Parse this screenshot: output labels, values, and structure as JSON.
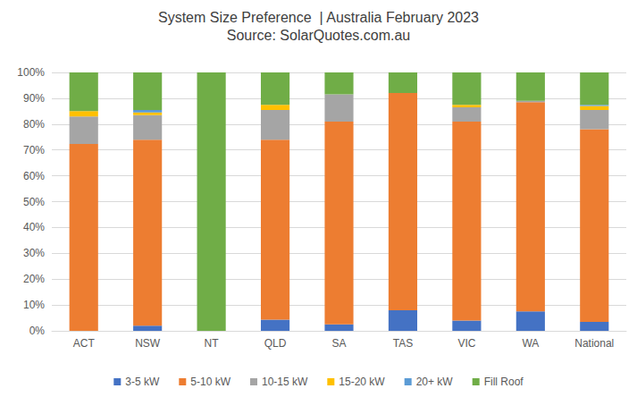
{
  "chart_data": {
    "type": "bar",
    "title": "System Size Preference  | Australia February 2023",
    "subtitle": "Source: SolarQuotes.com.au",
    "categories": [
      "ACT",
      "NSW",
      "NT",
      "QLD",
      "SA",
      "TAS",
      "VIC",
      "WA",
      "National"
    ],
    "stacked": true,
    "grid": true,
    "legend": "bottom",
    "ylim": [
      0,
      100
    ],
    "yticks": [
      {
        "value": 0,
        "label": "0%"
      },
      {
        "value": 10,
        "label": "10%"
      },
      {
        "value": 20,
        "label": "20%"
      },
      {
        "value": 30,
        "label": "30%"
      },
      {
        "value": 40,
        "label": "40%"
      },
      {
        "value": 50,
        "label": "50%"
      },
      {
        "value": 60,
        "label": "60%"
      },
      {
        "value": 70,
        "label": "70%"
      },
      {
        "value": 80,
        "label": "80%"
      },
      {
        "value": 90,
        "label": "90%"
      },
      {
        "value": 100,
        "label": "100%"
      }
    ],
    "series": [
      {
        "name": "3-5 kW",
        "color": "#4472c4",
        "values": [
          0,
          2,
          0,
          4.3,
          2.5,
          8,
          4,
          7.5,
          3.5
        ]
      },
      {
        "name": "5-10 kW",
        "color": "#ed7d31",
        "values": [
          72.3,
          72,
          0,
          69.7,
          78.5,
          84,
          77,
          81,
          74.5
        ]
      },
      {
        "name": "10-15 kW",
        "color": "#a5a5a5",
        "values": [
          10.7,
          9.5,
          0,
          11.5,
          10.5,
          0,
          5.5,
          0.5,
          7.5
        ]
      },
      {
        "name": "15-20 kW",
        "color": "#ffc000",
        "values": [
          2,
          1,
          0,
          2,
          0,
          0,
          1,
          0,
          1.5
        ]
      },
      {
        "name": "20+ kW",
        "color": "#5b9bd5",
        "values": [
          0,
          1,
          0,
          0,
          0,
          0,
          0,
          0,
          0.5
        ]
      },
      {
        "name": "Fill Roof",
        "color": "#70ad47",
        "values": [
          15,
          14.5,
          100,
          12.5,
          8.5,
          8,
          12.5,
          11,
          12.5
        ]
      }
    ]
  }
}
